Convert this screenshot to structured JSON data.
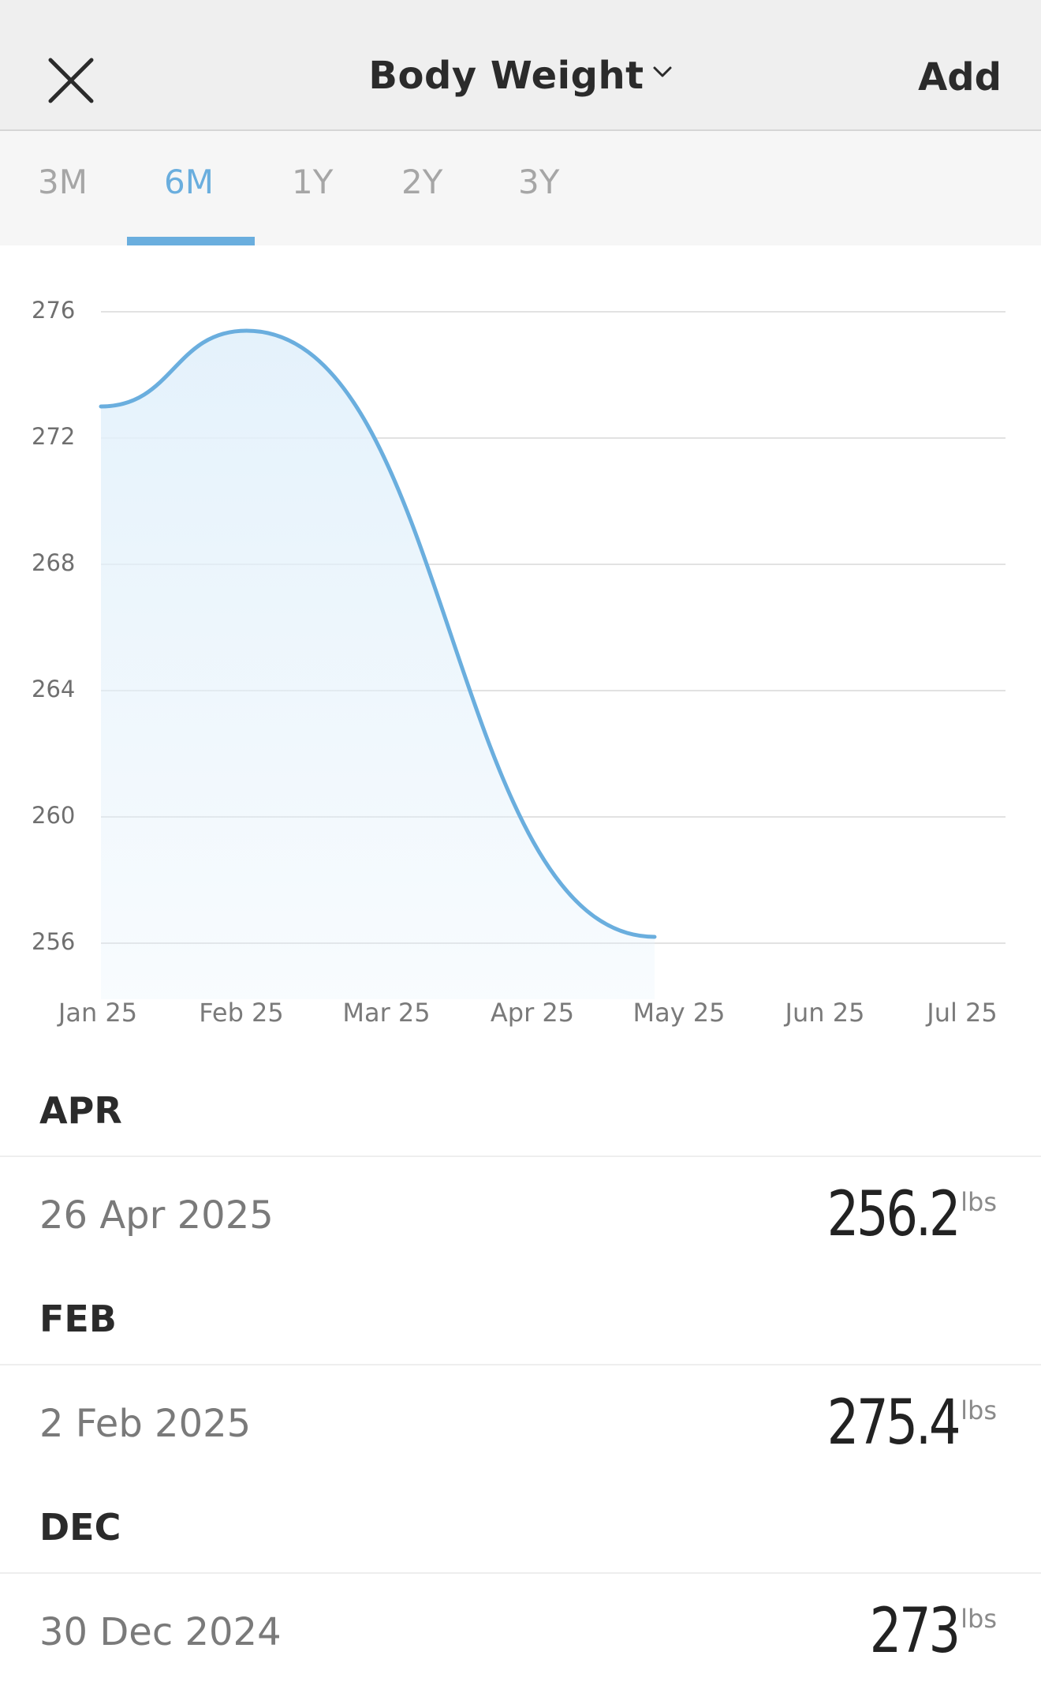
{
  "header": {
    "title": "Body Weight",
    "add_label": "Add",
    "close_icon": "close-icon",
    "dropdown_icon": "chevron-down-icon"
  },
  "tabs": [
    {
      "label": "3M",
      "active": false
    },
    {
      "label": "6M",
      "active": true
    },
    {
      "label": "1Y",
      "active": false
    },
    {
      "label": "2Y",
      "active": false
    },
    {
      "label": "3Y",
      "active": false
    }
  ],
  "colors": {
    "accent": "#6aaede",
    "fill": "#e3f1fb",
    "grid": "#e2e2e2",
    "text_muted": "#7a7a7a"
  },
  "chart_data": {
    "type": "area",
    "x_labels": [
      "Jan 25",
      "Feb 25",
      "Mar 25",
      "Apr 25",
      "May 25",
      "Jun 25",
      "Jul 25"
    ],
    "y_ticks": [
      276,
      272,
      268,
      264,
      260,
      256
    ],
    "ylim": [
      256,
      276
    ],
    "grid": true,
    "series": [
      {
        "points": [
          {
            "x": "2024-12-30",
            "y": 273.0
          },
          {
            "x": "2025-02-02",
            "y": 275.4
          },
          {
            "x": "2025-04-26",
            "y": 256.2
          }
        ]
      }
    ]
  },
  "entries": [
    {
      "month": "APR",
      "date": "26 Apr 2025",
      "value": "256.2",
      "unit": "lbs"
    },
    {
      "month": "FEB",
      "date": "2 Feb 2025",
      "value": "275.4",
      "unit": "lbs"
    },
    {
      "month": "DEC",
      "date": "30 Dec 2024",
      "value": "273",
      "unit": "lbs"
    }
  ]
}
